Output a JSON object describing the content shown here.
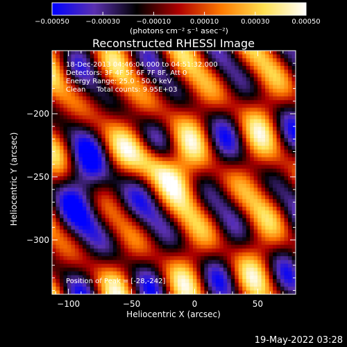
{
  "chart_data": {
    "type": "heatmap",
    "title": "Reconstructed RHESSI Image",
    "xlabel": "Heliocentric X (arcsec)",
    "ylabel": "Heliocentric Y (arcsec)",
    "xlim": [
      -113,
      80
    ],
    "ylim": [
      -343,
      -150
    ],
    "xticks": [
      -100,
      -50,
      0,
      50
    ],
    "yticks": [
      -200,
      -250,
      -300
    ],
    "xtick_labels": [
      "−100",
      "−50",
      "0",
      "50"
    ],
    "ytick_labels": [
      "−200",
      "−250",
      "−300"
    ],
    "colorbar": {
      "range": [
        -0.0005,
        0.0005
      ],
      "ticks": [
        -0.0005,
        -0.0003,
        -0.0001,
        0.0001,
        0.0003,
        0.0005
      ],
      "tick_labels": [
        "−0.00050",
        "−0.00030",
        "−0.00010",
        "0.00010",
        "0.00030",
        "0.00050"
      ],
      "unit_label": "(photons cm⁻² s⁻¹ asec⁻²)",
      "colormap": [
        "#0000ff",
        "#5a30b0",
        "#000000",
        "#b00000",
        "#ff7a00",
        "#ffe050",
        "#ffffff"
      ]
    },
    "annotations": [
      "18-Dec-2013 04:46:04.000 to 04:51:32.000",
      "Detectors: 3F 4F 5F 6F 7F 8F, Att 0",
      "Energy Range: 25.0 - 50.0 keV",
      "Clean     Total counts: 9.95E+03"
    ],
    "peak_label": "Position of Peak = [-28,-242]",
    "peak": [
      -28,
      -242
    ]
  },
  "timestamp": "19-May-2022 03:28"
}
